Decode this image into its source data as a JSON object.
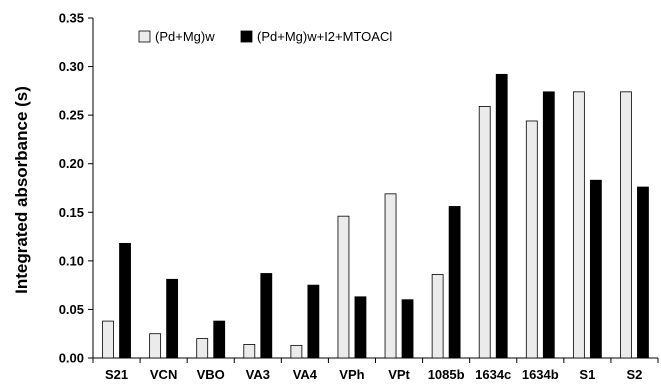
{
  "chart_data": {
    "type": "bar",
    "categories": [
      "S21",
      "VCN",
      "VBO",
      "VA3",
      "VA4",
      "VPh",
      "VPt",
      "1085b",
      "1634c",
      "1634b",
      "S1",
      "S2"
    ],
    "series": [
      {
        "name": "(Pd+Mg)w",
        "color": "#ebebeb",
        "values": [
          0.038,
          0.025,
          0.02,
          0.014,
          0.013,
          0.146,
          0.169,
          0.086,
          0.259,
          0.244,
          0.274,
          0.274
        ]
      },
      {
        "name": "(Pd+Mg)w+I2+MTOACl",
        "color": "#000000",
        "values": [
          0.118,
          0.081,
          0.038,
          0.087,
          0.075,
          0.063,
          0.06,
          0.156,
          0.292,
          0.274,
          0.183,
          0.176
        ]
      }
    ],
    "title": "",
    "xlabel": "",
    "ylabel": "Integrated absorbance (s)",
    "ylim": [
      0,
      0.35
    ],
    "yticks": [
      "0.00",
      "0.05",
      "0.10",
      "0.15",
      "0.20",
      "0.25",
      "0.30",
      "0.35"
    ],
    "grid": false,
    "legend_position": "top-left, horizontal"
  }
}
